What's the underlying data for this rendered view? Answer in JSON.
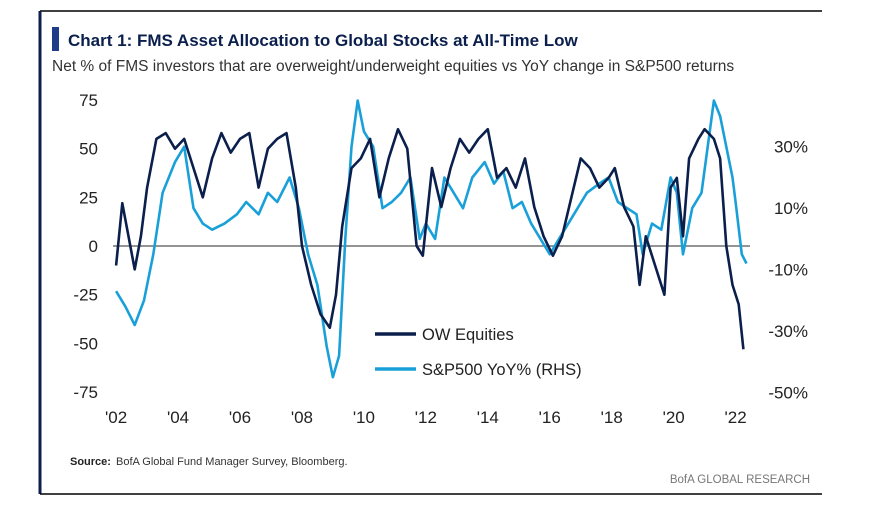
{
  "chart_data": {
    "type": "line",
    "title": "Chart 1: FMS Asset Allocation to Global Stocks at All-Time Low",
    "subtitle": "Net % of FMS investors that are overweight/underweight equities vs YoY change in S&P500 returns",
    "source_label": "Source:",
    "source": "BofA Global Fund Manager Survey, Bloomberg.",
    "credit": "BofA GLOBAL RESEARCH",
    "xlim": [
      2001.9,
      2022.4
    ],
    "xticks": [
      {
        "value": 2002,
        "label": "'02"
      },
      {
        "value": 2004,
        "label": "'04"
      },
      {
        "value": 2006,
        "label": "'06"
      },
      {
        "value": 2008,
        "label": "'08"
      },
      {
        "value": 2010,
        "label": "'10"
      },
      {
        "value": 2012,
        "label": "'12"
      },
      {
        "value": 2014,
        "label": "'14"
      },
      {
        "value": 2016,
        "label": "'16"
      },
      {
        "value": 2018,
        "label": "'18"
      },
      {
        "value": 2020,
        "label": "'20"
      },
      {
        "value": 2022,
        "label": "'22"
      }
    ],
    "ylim": [
      -75,
      75
    ],
    "yticks": [
      -75,
      -50,
      -25,
      0,
      25,
      50,
      75
    ],
    "y2lim": [
      -49.8,
      45.2
    ],
    "y2ticks": [
      {
        "value": -50,
        "label": "-50%"
      },
      {
        "value": -30,
        "label": "-30%"
      },
      {
        "value": -10,
        "label": "-10%"
      },
      {
        "value": 10,
        "label": "10%"
      },
      {
        "value": 30,
        "label": "30%"
      }
    ],
    "series": [
      {
        "name": "OW Equities",
        "color": "#0b1f4d",
        "x": [
          2002.0,
          2002.2,
          2002.4,
          2002.6,
          2002.8,
          2003.0,
          2003.3,
          2003.6,
          2003.9,
          2004.2,
          2004.5,
          2004.8,
          2005.1,
          2005.4,
          2005.7,
          2006.0,
          2006.3,
          2006.6,
          2006.9,
          2007.2,
          2007.5,
          2007.8,
          2008.0,
          2008.3,
          2008.6,
          2008.9,
          2009.1,
          2009.3,
          2009.6,
          2009.9,
          2010.2,
          2010.5,
          2010.8,
          2011.1,
          2011.4,
          2011.7,
          2011.9,
          2012.2,
          2012.5,
          2012.8,
          2013.1,
          2013.4,
          2013.7,
          2014.0,
          2014.3,
          2014.6,
          2014.9,
          2015.2,
          2015.5,
          2015.8,
          2016.1,
          2016.4,
          2016.7,
          2017.0,
          2017.3,
          2017.6,
          2017.9,
          2018.1,
          2018.4,
          2018.7,
          2018.9,
          2019.1,
          2019.4,
          2019.7,
          2019.9,
          2020.1,
          2020.3,
          2020.5,
          2020.8,
          2021.0,
          2021.3,
          2021.5,
          2021.7,
          2021.9,
          2022.1,
          2022.25
        ],
        "values": [
          -10,
          22,
          5,
          -12,
          5,
          30,
          55,
          58,
          50,
          55,
          40,
          25,
          45,
          58,
          48,
          55,
          58,
          30,
          50,
          55,
          58,
          30,
          0,
          -20,
          -35,
          -42,
          -25,
          10,
          40,
          45,
          55,
          25,
          45,
          60,
          50,
          0,
          -5,
          40,
          20,
          40,
          55,
          48,
          55,
          60,
          35,
          40,
          30,
          45,
          20,
          5,
          -5,
          5,
          25,
          45,
          40,
          30,
          35,
          40,
          20,
          10,
          -20,
          5,
          -10,
          -25,
          30,
          35,
          5,
          45,
          55,
          60,
          55,
          45,
          0,
          -20,
          -30,
          -53
        ]
      },
      {
        "name": "S&P500 YoY% (RHS)",
        "color": "#1aa0d8",
        "axis": "y2",
        "x": [
          2002.0,
          2002.3,
          2002.6,
          2002.9,
          2003.2,
          2003.5,
          2003.9,
          2004.2,
          2004.5,
          2004.8,
          2005.1,
          2005.5,
          2005.9,
          2006.2,
          2006.6,
          2006.9,
          2007.2,
          2007.6,
          2007.9,
          2008.2,
          2008.5,
          2008.8,
          2009.0,
          2009.2,
          2009.4,
          2009.6,
          2009.8,
          2010.0,
          2010.3,
          2010.6,
          2010.9,
          2011.2,
          2011.5,
          2011.8,
          2012.0,
          2012.3,
          2012.6,
          2012.9,
          2013.2,
          2013.5,
          2013.9,
          2014.2,
          2014.5,
          2014.8,
          2015.1,
          2015.4,
          2015.7,
          2016.0,
          2016.3,
          2016.6,
          2016.9,
          2017.2,
          2017.6,
          2017.9,
          2018.2,
          2018.5,
          2018.8,
          2019.0,
          2019.3,
          2019.6,
          2019.9,
          2020.1,
          2020.3,
          2020.6,
          2020.9,
          2021.1,
          2021.3,
          2021.5,
          2021.7,
          2021.9,
          2022.0,
          2022.2,
          2022.35
        ],
        "values": [
          -17,
          -22,
          -28,
          -20,
          -5,
          15,
          25,
          30,
          10,
          5,
          3,
          5,
          8,
          12,
          8,
          15,
          12,
          20,
          10,
          -5,
          -15,
          -35,
          -45,
          -38,
          0,
          30,
          45,
          35,
          30,
          10,
          12,
          15,
          20,
          0,
          5,
          0,
          20,
          15,
          10,
          20,
          25,
          18,
          22,
          10,
          12,
          5,
          0,
          -5,
          0,
          5,
          10,
          15,
          18,
          20,
          12,
          10,
          8,
          -5,
          5,
          3,
          20,
          15,
          -5,
          10,
          15,
          30,
          45,
          40,
          30,
          20,
          12,
          -5,
          -8
        ]
      }
    ]
  }
}
